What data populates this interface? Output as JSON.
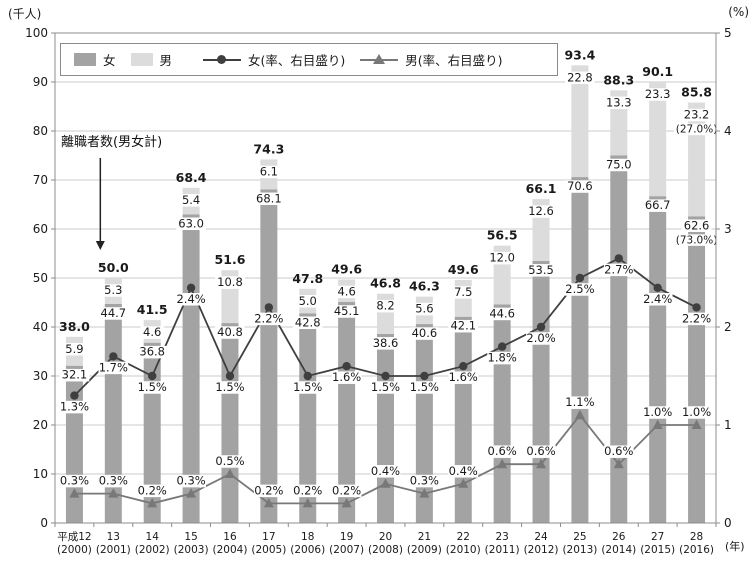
{
  "chart_data": {
    "type": "bar+line",
    "title": "",
    "left_axis": {
      "label": "(千人)",
      "min": 0,
      "max": 100,
      "tick_step": 10
    },
    "right_axis": {
      "label": "(%)",
      "min": 0,
      "max": 5,
      "tick_step": 1
    },
    "x_axis_unit": "(年)",
    "categories": [
      "平成12",
      "13",
      "14",
      "15",
      "16",
      "17",
      "18",
      "19",
      "20",
      "21",
      "22",
      "23",
      "24",
      "25",
      "26",
      "27",
      "28"
    ],
    "categories_western": [
      "(2000)",
      "(2001)",
      "(2002)",
      "(2003)",
      "(2004)",
      "(2005)",
      "(2006)",
      "(2007)",
      "(2008)",
      "(2009)",
      "(2010)",
      "(2011)",
      "(2012)",
      "(2013)",
      "(2014)",
      "(2015)",
      "(2016)"
    ],
    "series": [
      {
        "name": "女",
        "type": "bar",
        "axis": "left",
        "color": "#a3a3a3",
        "values": [
          32.1,
          44.7,
          36.8,
          63.0,
          40.8,
          68.1,
          42.8,
          45.1,
          38.6,
          40.6,
          42.1,
          44.6,
          53.5,
          70.6,
          75.0,
          66.7,
          62.6
        ]
      },
      {
        "name": "男",
        "type": "bar",
        "axis": "left",
        "color": "#dcdcdc",
        "values": [
          5.9,
          5.3,
          4.6,
          5.4,
          10.8,
          6.1,
          5.0,
          4.6,
          8.2,
          5.6,
          7.5,
          12.0,
          12.6,
          22.8,
          13.3,
          23.3,
          23.2
        ]
      },
      {
        "name": "女(率、右目盛り)",
        "type": "line",
        "marker": "circle",
        "axis": "right",
        "color": "#3f3f3f",
        "values": [
          1.3,
          1.7,
          1.5,
          2.4,
          1.5,
          2.2,
          1.5,
          1.6,
          1.5,
          1.5,
          1.6,
          1.8,
          2.0,
          2.5,
          2.7,
          2.4,
          2.2
        ]
      },
      {
        "name": "男(率、右目盛り)",
        "type": "line",
        "marker": "triangle",
        "axis": "right",
        "color": "#787878",
        "values": [
          0.3,
          0.3,
          0.2,
          0.3,
          0.5,
          0.2,
          0.2,
          0.2,
          0.4,
          0.3,
          0.4,
          0.6,
          0.6,
          1.1,
          0.6,
          1.0,
          1.0
        ]
      }
    ],
    "totals": [
      38.0,
      50.0,
      41.5,
      68.4,
      51.6,
      74.3,
      47.8,
      49.6,
      46.8,
      46.3,
      49.6,
      56.5,
      66.1,
      93.4,
      88.3,
      90.1,
      85.8
    ],
    "extra_labels": {
      "year_index": 16,
      "male": "(27.0%)",
      "female": "(73.0%)"
    },
    "annotation": {
      "text": "離職者数(男女計)",
      "target_year_index": 1
    },
    "grid": "horizontal",
    "legend_position": "top-inside"
  }
}
